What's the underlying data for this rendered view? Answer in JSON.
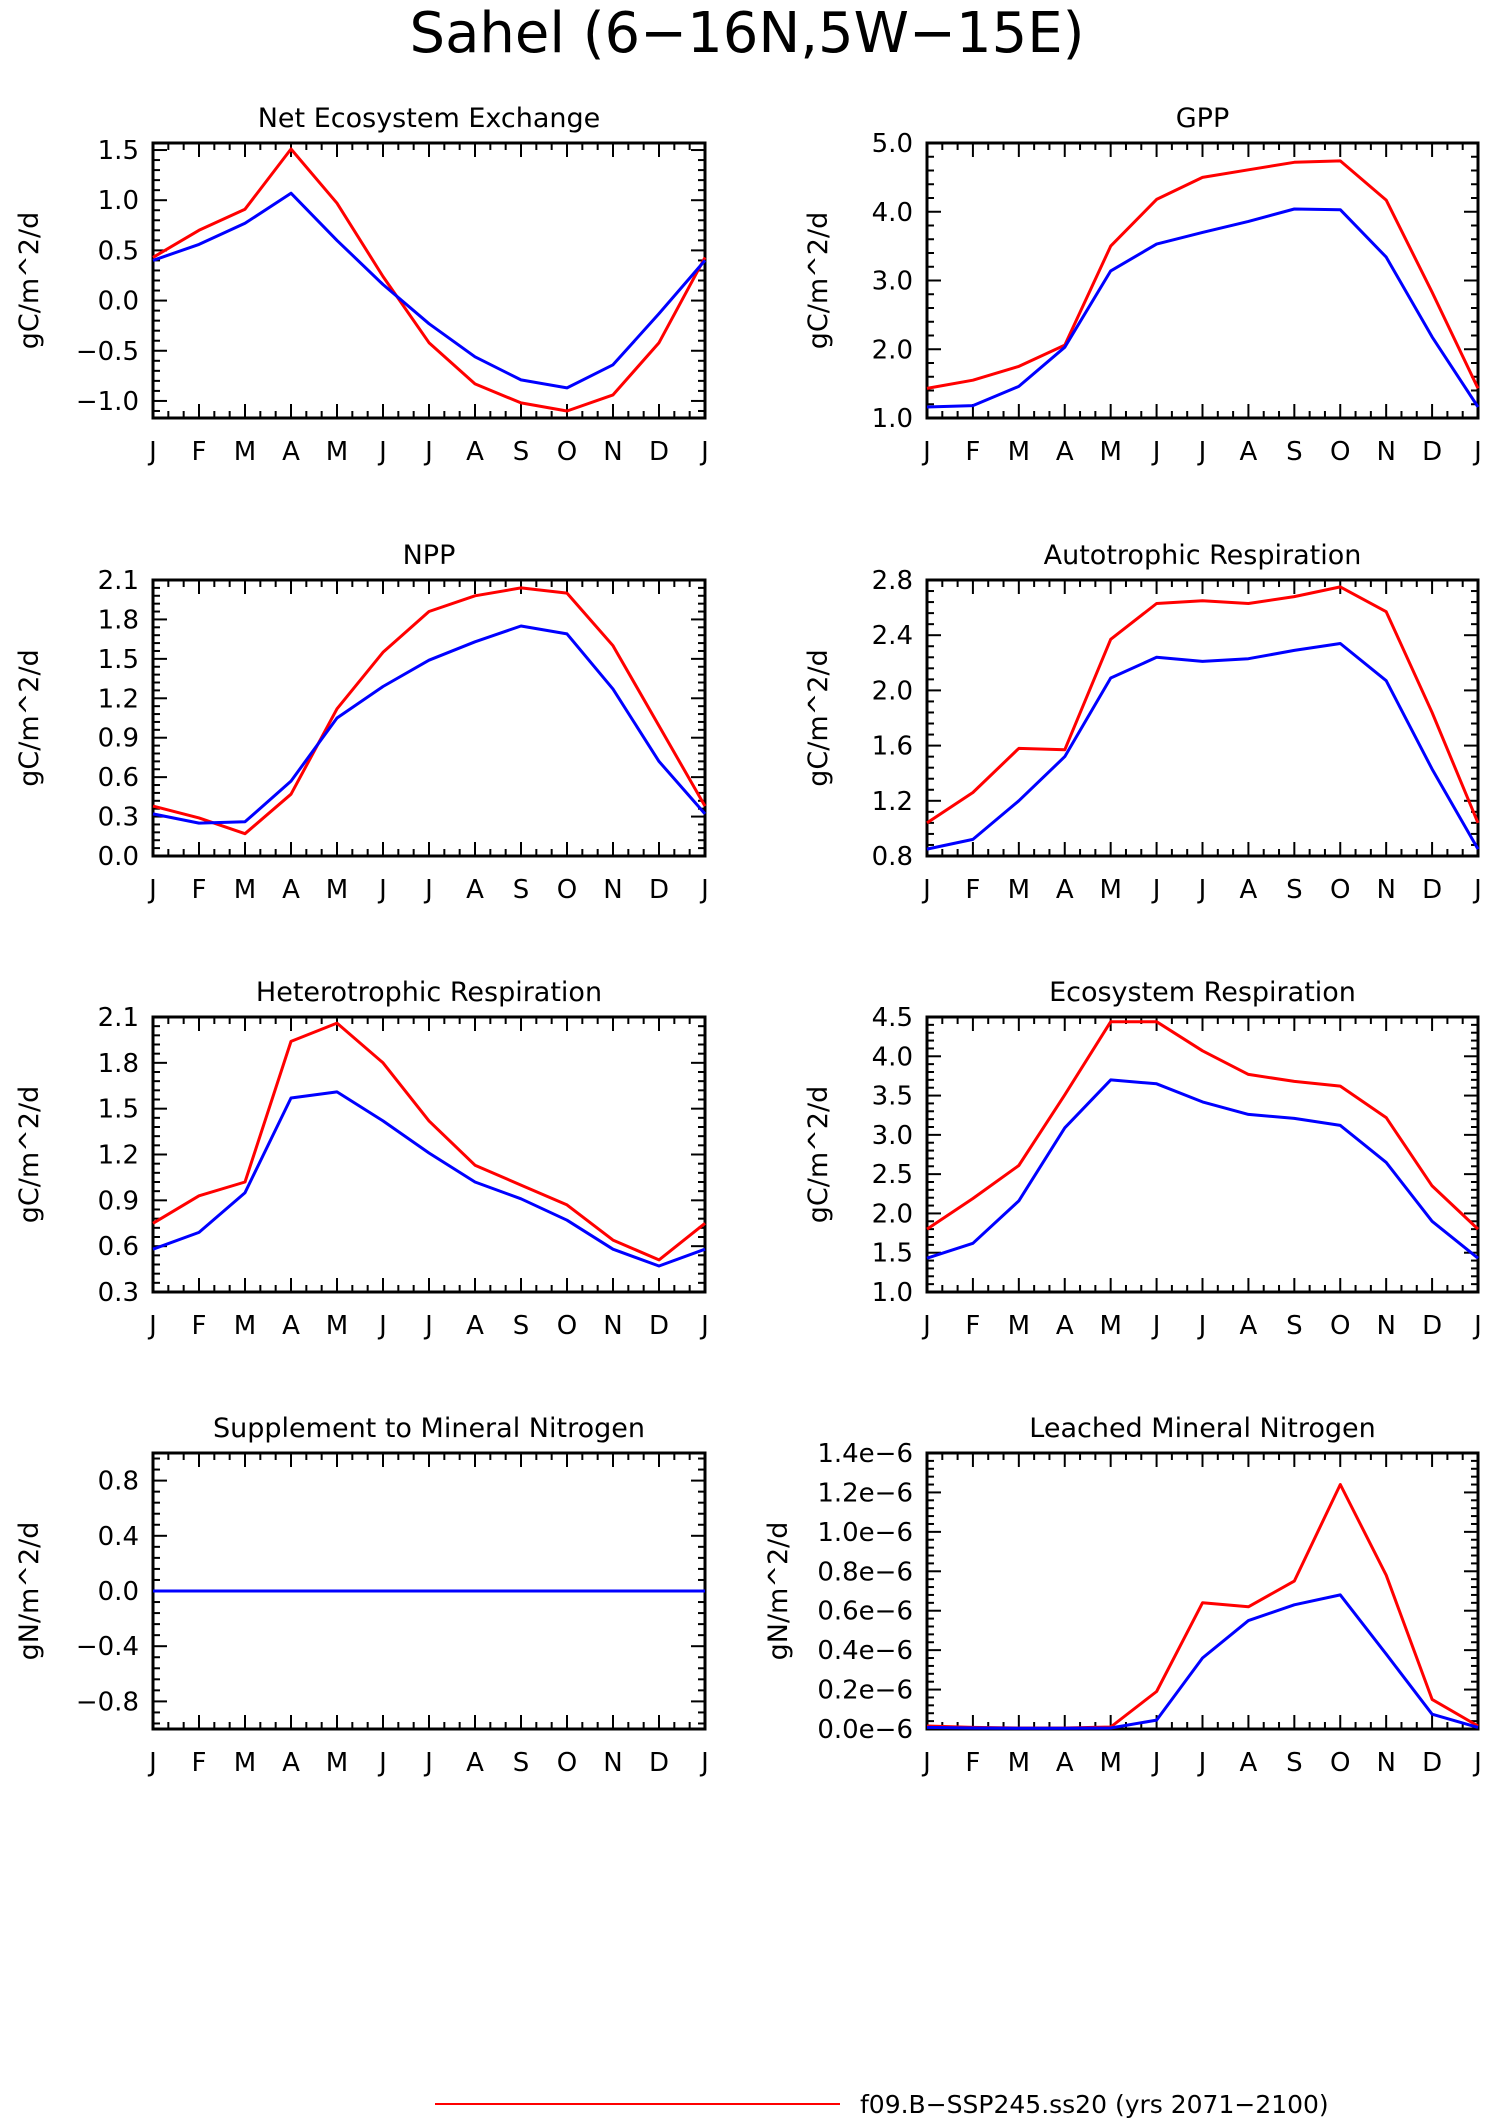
{
  "figure": {
    "title": "Sahel (6−16N,5W−15E)",
    "legend": [
      {
        "label": "f09.B−SSP245.ss20 (yrs 2071−2100)",
        "color": "#ff0000"
      }
    ]
  },
  "chart_data": [
    {
      "type": "line",
      "title": "Net Ecosystem Exchange",
      "ylabel": "gC/m^2/d",
      "categories": [
        "J",
        "F",
        "M",
        "A",
        "M",
        "J",
        "J",
        "A",
        "S",
        "O",
        "N",
        "D",
        "J"
      ],
      "ylim": [
        -1.17,
        1.57
      ],
      "yticks": [
        -1.0,
        -0.5,
        0.0,
        0.5,
        1.0,
        1.5
      ],
      "ytick_labels": [
        "−1.0",
        "−0.5",
        "0.0",
        "0.5",
        "1.0",
        "1.5"
      ],
      "series": [
        {
          "color": "#ff0000",
          "values": [
            0.43,
            0.7,
            0.91,
            1.51,
            0.97,
            0.24,
            -0.42,
            -0.83,
            -1.02,
            -1.1,
            -0.94,
            -0.42,
            0.43
          ]
        },
        {
          "color": "#0000ff",
          "values": [
            0.4,
            0.56,
            0.77,
            1.07,
            0.6,
            0.16,
            -0.23,
            -0.56,
            -0.79,
            -0.87,
            -0.64,
            -0.13,
            0.4
          ]
        }
      ]
    },
    {
      "type": "line",
      "title": "GPP",
      "ylabel": "gC/m^2/d",
      "categories": [
        "J",
        "F",
        "M",
        "A",
        "M",
        "J",
        "J",
        "A",
        "S",
        "O",
        "N",
        "D",
        "J"
      ],
      "ylim": [
        1.0,
        5.0
      ],
      "yticks": [
        1.0,
        2.0,
        3.0,
        4.0,
        5.0
      ],
      "ytick_labels": [
        "1.0",
        "2.0",
        "3.0",
        "4.0",
        "5.0"
      ],
      "series": [
        {
          "color": "#ff0000",
          "values": [
            1.43,
            1.55,
            1.75,
            2.06,
            3.5,
            4.18,
            4.5,
            4.61,
            4.72,
            4.74,
            4.17,
            2.83,
            1.43
          ]
        },
        {
          "color": "#0000ff",
          "values": [
            1.16,
            1.18,
            1.46,
            2.03,
            3.14,
            3.53,
            3.7,
            3.86,
            4.04,
            4.03,
            3.34,
            2.18,
            1.16
          ]
        }
      ]
    },
    {
      "type": "line",
      "title": "NPP",
      "ylabel": "gC/m^2/d",
      "categories": [
        "J",
        "F",
        "M",
        "A",
        "M",
        "J",
        "J",
        "A",
        "S",
        "O",
        "N",
        "D",
        "J"
      ],
      "ylim": [
        0.0,
        2.1
      ],
      "yticks": [
        0.0,
        0.3,
        0.6,
        0.9,
        1.2,
        1.5,
        1.8,
        2.1
      ],
      "ytick_labels": [
        "0.0",
        "0.3",
        "0.6",
        "0.9",
        "1.2",
        "1.5",
        "1.8",
        "2.1"
      ],
      "series": [
        {
          "color": "#ff0000",
          "values": [
            0.38,
            0.29,
            0.17,
            0.47,
            1.12,
            1.55,
            1.86,
            1.98,
            2.04,
            2.0,
            1.6,
            0.99,
            0.38
          ]
        },
        {
          "color": "#0000ff",
          "values": [
            0.32,
            0.25,
            0.26,
            0.57,
            1.05,
            1.29,
            1.49,
            1.63,
            1.75,
            1.69,
            1.27,
            0.72,
            0.32
          ]
        }
      ]
    },
    {
      "type": "line",
      "title": "Autotrophic Respiration",
      "ylabel": "gC/m^2/d",
      "categories": [
        "J",
        "F",
        "M",
        "A",
        "M",
        "J",
        "J",
        "A",
        "S",
        "O",
        "N",
        "D",
        "J"
      ],
      "ylim": [
        0.8,
        2.8
      ],
      "yticks": [
        0.8,
        1.2,
        1.6,
        2.0,
        2.4,
        2.8
      ],
      "ytick_labels": [
        "0.8",
        "1.2",
        "1.6",
        "2.0",
        "2.4",
        "2.8"
      ],
      "series": [
        {
          "color": "#ff0000",
          "values": [
            1.04,
            1.26,
            1.58,
            1.57,
            2.37,
            2.63,
            2.65,
            2.63,
            2.68,
            2.75,
            2.57,
            1.84,
            1.04
          ]
        },
        {
          "color": "#0000ff",
          "values": [
            0.85,
            0.92,
            1.2,
            1.52,
            2.09,
            2.24,
            2.21,
            2.23,
            2.29,
            2.34,
            2.07,
            1.43,
            0.85
          ]
        }
      ]
    },
    {
      "type": "line",
      "title": "Heterotrophic Respiration",
      "ylabel": "gC/m^2/d",
      "categories": [
        "J",
        "F",
        "M",
        "A",
        "M",
        "J",
        "J",
        "A",
        "S",
        "O",
        "N",
        "D",
        "J"
      ],
      "ylim": [
        0.3,
        2.1
      ],
      "yticks": [
        0.3,
        0.6,
        0.9,
        1.2,
        1.5,
        1.8,
        2.1
      ],
      "ytick_labels": [
        "0.3",
        "0.6",
        "0.9",
        "1.2",
        "1.5",
        "1.8",
        "2.1"
      ],
      "series": [
        {
          "color": "#ff0000",
          "values": [
            0.75,
            0.93,
            1.02,
            1.94,
            2.06,
            1.8,
            1.42,
            1.13,
            1.0,
            0.87,
            0.64,
            0.51,
            0.75
          ]
        },
        {
          "color": "#0000ff",
          "values": [
            0.58,
            0.69,
            0.95,
            1.57,
            1.61,
            1.42,
            1.21,
            1.02,
            0.91,
            0.77,
            0.58,
            0.47,
            0.58
          ]
        }
      ]
    },
    {
      "type": "line",
      "title": "Ecosystem Respiration",
      "ylabel": "gC/m^2/d",
      "categories": [
        "J",
        "F",
        "M",
        "A",
        "M",
        "J",
        "J",
        "A",
        "S",
        "O",
        "N",
        "D",
        "J"
      ],
      "ylim": [
        1.0,
        4.5
      ],
      "yticks": [
        1.0,
        1.5,
        2.0,
        2.5,
        3.0,
        3.5,
        4.0,
        4.5
      ],
      "ytick_labels": [
        "1.0",
        "1.5",
        "2.0",
        "2.5",
        "3.0",
        "3.5",
        "4.0",
        "4.5"
      ],
      "series": [
        {
          "color": "#ff0000",
          "values": [
            1.8,
            2.19,
            2.61,
            3.51,
            4.44,
            4.44,
            4.07,
            3.77,
            3.68,
            3.62,
            3.22,
            2.35,
            1.8
          ]
        },
        {
          "color": "#0000ff",
          "values": [
            1.43,
            1.62,
            2.16,
            3.09,
            3.7,
            3.65,
            3.42,
            3.26,
            3.21,
            3.12,
            2.65,
            1.9,
            1.43
          ]
        }
      ]
    },
    {
      "type": "line",
      "title": "Supplement to Mineral Nitrogen",
      "ylabel": "gN/m^2/d",
      "categories": [
        "J",
        "F",
        "M",
        "A",
        "M",
        "J",
        "J",
        "A",
        "S",
        "O",
        "N",
        "D",
        "J"
      ],
      "ylim": [
        -1.0,
        1.0
      ],
      "yticks": [
        -0.8,
        -0.4,
        0.0,
        0.4,
        0.8
      ],
      "ytick_labels": [
        "−0.8",
        "−0.4",
        "0.0",
        "0.4",
        "0.8"
      ],
      "series": [
        {
          "color": "#ff0000",
          "values": [
            0,
            0,
            0,
            0,
            0,
            0,
            0,
            0,
            0,
            0,
            0,
            0,
            0
          ]
        },
        {
          "color": "#0000ff",
          "values": [
            0,
            0,
            0,
            0,
            0,
            0,
            0,
            0,
            0,
            0,
            0,
            0,
            0
          ]
        }
      ]
    },
    {
      "type": "line",
      "title": "Leached Mineral Nitrogen",
      "ylabel": "gN/m^2/d",
      "categories": [
        "J",
        "F",
        "M",
        "A",
        "M",
        "J",
        "J",
        "A",
        "S",
        "O",
        "N",
        "D",
        "J"
      ],
      "ylim": [
        0.0,
        1.4e-06
      ],
      "yticks": [
        0.0,
        2e-07,
        4e-07,
        6e-07,
        8e-07,
        1e-06,
        1.2e-06,
        1.4e-06
      ],
      "ytick_labels": [
        "0.0e−6",
        "0.2e−6",
        "0.4e−6",
        "0.6e−6",
        "0.8e−6",
        "1.0e−6",
        "1.2e−6",
        "1.4e−6"
      ],
      "series": [
        {
          "color": "#ff0000",
          "values": [
            1.5e-08,
            8e-09,
            5e-09,
            5e-09,
            1e-08,
            1.9e-07,
            6.4e-07,
            6.2e-07,
            7.5e-07,
            1.24e-06,
            7.8e-07,
            1.5e-07,
            1.5e-08
          ]
        },
        {
          "color": "#0000ff",
          "values": [
            8e-09,
            5e-09,
            4e-09,
            4e-09,
            5e-09,
            4.5e-08,
            3.6e-07,
            5.5e-07,
            6.3e-07,
            6.8e-07,
            3.8e-07,
            7.5e-08,
            8e-09
          ]
        }
      ]
    }
  ]
}
